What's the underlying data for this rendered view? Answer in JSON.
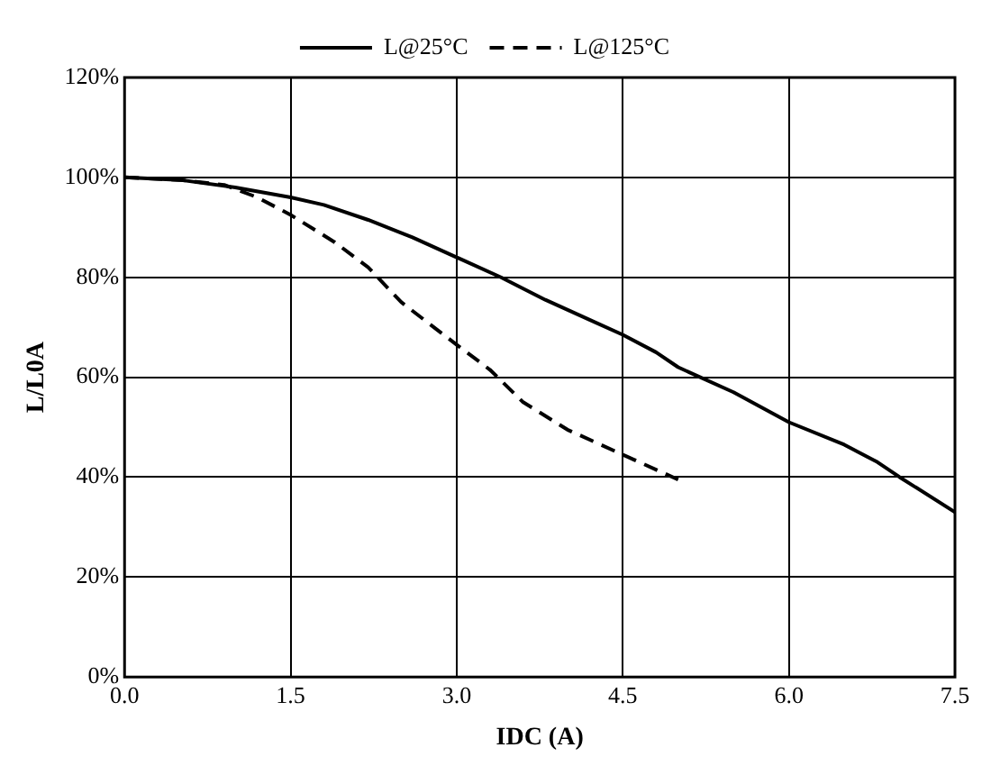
{
  "chart_data": {
    "type": "line",
    "xlabel": "IDC (A)",
    "ylabel": "L/L0A",
    "series": [
      {
        "name": "L@25°C",
        "color": "#000000",
        "line_style": "solid",
        "x": [
          0,
          0.5,
          1,
          1.5,
          1.8,
          2.2,
          2.6,
          3,
          3.4,
          3.8,
          4.2,
          4.5,
          4.8,
          5,
          5.5,
          6,
          6.5,
          6.8,
          7,
          7.5
        ],
        "values": [
          100,
          99.5,
          98,
          96,
          94.5,
          91.5,
          88,
          84,
          80,
          75.5,
          71.5,
          68.5,
          65,
          62,
          57,
          51,
          46.5,
          43,
          40,
          33
        ]
      },
      {
        "name": "L@125°C",
        "color": "#000000",
        "line_style": "dashed",
        "x": [
          0,
          0.5,
          0.9,
          1.2,
          1.5,
          1.9,
          2.2,
          2.5,
          3,
          3.3,
          3.6,
          4,
          4.3,
          4.6,
          5
        ],
        "values": [
          100,
          99.5,
          98.5,
          96,
          92.5,
          87,
          82,
          75,
          66.5,
          61.5,
          55,
          49.5,
          46.5,
          43.5,
          39.5
        ]
      }
    ],
    "xlim": [
      0,
      7.5
    ],
    "xticks": [
      {
        "value": 0,
        "label": "0.0"
      },
      {
        "value": 1.5,
        "label": "1.5"
      },
      {
        "value": 3,
        "label": "3.0"
      },
      {
        "value": 4.5,
        "label": "4.5"
      },
      {
        "value": 6,
        "label": "6.0"
      },
      {
        "value": 7.5,
        "label": "7.5"
      }
    ],
    "ylim": [
      0,
      120
    ],
    "yticks": [
      {
        "value": 0,
        "label": "0%"
      },
      {
        "value": 20,
        "label": "20%"
      },
      {
        "value": 40,
        "label": "40%"
      },
      {
        "value": 60,
        "label": "60%"
      },
      {
        "value": 80,
        "label": "80%"
      },
      {
        "value": 100,
        "label": "100%"
      },
      {
        "value": 120,
        "label": "120%"
      }
    ],
    "grid": true,
    "legend": "top",
    "marker": "none"
  }
}
